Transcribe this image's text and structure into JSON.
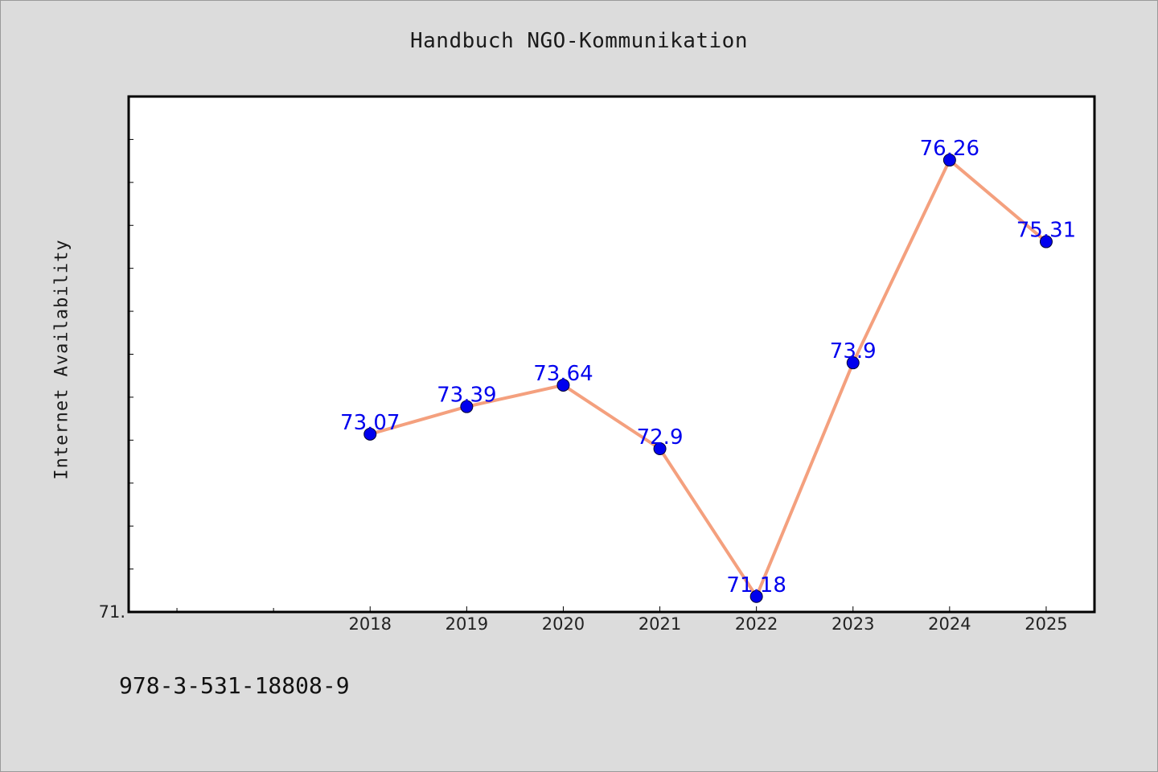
{
  "chart_data": {
    "type": "line",
    "title": "Handbuch NGO-Kommunikation",
    "xlabel": "",
    "ylabel": "Internet Availability",
    "categories": [
      "2018",
      "2019",
      "2020",
      "2021",
      "2022",
      "2023",
      "2024",
      "2025"
    ],
    "series": [
      {
        "values": [
          73.07,
          73.39,
          73.64,
          72.9,
          71.18,
          73.9,
          76.26,
          75.31
        ],
        "data_labels": [
          "73.07",
          "73.39",
          "73.64",
          "72.9",
          "71.18",
          "73.9",
          "76.26",
          "75.31"
        ]
      }
    ],
    "ylim": [
      71.0,
      77.0
    ],
    "xlim": [
      2015.5,
      2025.5
    ],
    "y_tick_labels": [
      "71."
    ],
    "grid": false,
    "line_color": "#f4a07e",
    "marker_color": "#0000ee",
    "label_color": "#0000ee"
  },
  "footer": {
    "isbn": "978-3-531-18808-9"
  }
}
